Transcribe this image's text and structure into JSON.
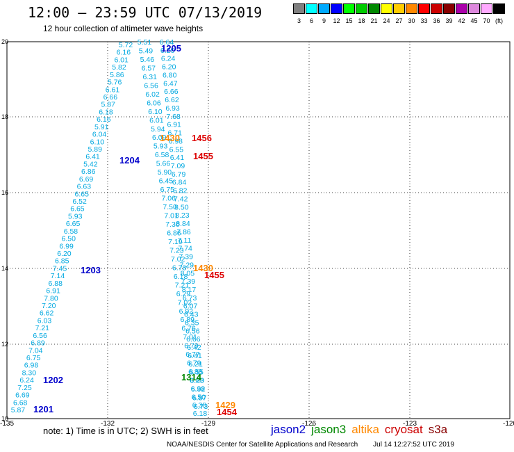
{
  "title": "12:00 – 23:59 UTC 07/13/2019",
  "subtitle": "12 hour collection of altimeter wave heights",
  "color_scale": {
    "labels": [
      "3",
      "6",
      "9",
      "12",
      "15",
      "18",
      "21",
      "24",
      "27",
      "30",
      "33",
      "36",
      "39",
      "42",
      "45",
      "70",
      "(ft)"
    ],
    "colors": [
      "#808080",
      "#00ffff",
      "#00aaff",
      "#0000ff",
      "#00ff00",
      "#00cc00",
      "#008800",
      "#ffff00",
      "#ffcc00",
      "#ff8800",
      "#ff0000",
      "#cc0000",
      "#880000",
      "#aa00aa",
      "#dd88dd",
      "#ffaaff",
      "#000000"
    ]
  },
  "axes": {
    "x_ticks": [
      "-135",
      "-132",
      "-129",
      "-126",
      "-123",
      "-120"
    ],
    "y_ticks": [
      "20",
      "18",
      "16",
      "14",
      "12",
      "10"
    ]
  },
  "markers": [
    {
      "text": "1205",
      "color": "#0000cc"
    },
    {
      "text": "1204",
      "color": "#0000cc"
    },
    {
      "text": "1203",
      "color": "#0000cc"
    },
    {
      "text": "1202",
      "color": "#0000cc"
    },
    {
      "text": "1201",
      "color": "#0000cc"
    },
    {
      "text": "1456",
      "color": "#dd0000"
    },
    {
      "text": "1455",
      "color": "#dd0000"
    },
    {
      "text": "1455",
      "color": "#dd0000"
    },
    {
      "text": "1454",
      "color": "#dd0000"
    },
    {
      "text": "1430",
      "color": "#ff8800"
    },
    {
      "text": "1430",
      "color": "#ff8800"
    },
    {
      "text": "1429",
      "color": "#ff8800"
    },
    {
      "text": "1314",
      "color": "#008800"
    }
  ],
  "track1": [
    "5.87",
    "6.68",
    "6.69",
    "7.25",
    "6.24",
    "8.30",
    "6.98",
    "6.75",
    "7.04",
    "6.89",
    "6.56",
    "7.21",
    "6.03",
    "6.62",
    "7.20",
    "7.80",
    "6.91",
    "6.88",
    "7.14",
    "7.45",
    "6.85",
    "6.20",
    "6.99",
    "6.50",
    "6.58",
    "6.65",
    "5.93",
    "6.65",
    "6.52",
    "6.65",
    "6.63",
    "6.69",
    "6.86",
    "5.42",
    "6.41",
    "5.89",
    "6.10",
    "6.04",
    "5.91",
    "6.16",
    "6.18",
    "5.87",
    "6.66",
    "6.61",
    "5.76",
    "5.86",
    "5.82",
    "6.01",
    "6.16",
    "5.72"
  ],
  "track2": [
    "5.51",
    "5.49",
    "5.46",
    "6.57",
    "6.31",
    "6.56",
    "6.02",
    "6.06",
    "6.10",
    "6.01",
    "5.94",
    "6.09",
    "5.93",
    "6.58",
    "5.66",
    "5.90",
    "6.45",
    "6.75",
    "7.06",
    "7.50",
    "7.01",
    "7.30",
    "6.86",
    "7.19",
    "7.23",
    "7.02",
    "6.78",
    "6.18",
    "7.21",
    "6.29",
    "7.02",
    "6.92",
    "6.89",
    "6.76",
    "7.01",
    "6.79",
    "6.77",
    "6.79",
    "6.88",
    "6.83",
    "6.92",
    "6.87",
    "6.73"
  ],
  "track3": [
    "6.64",
    "6.20",
    "6.24",
    "6.20",
    "6.80",
    "6.47",
    "6.66",
    "6.62",
    "6.93",
    "7.68",
    "6.91",
    "6.71",
    "6.98",
    "6.55",
    "6.41",
    "7.09",
    "6.79",
    "6.84",
    "6.82",
    "7.42",
    "8.50",
    "8.23",
    "8.84",
    "7.86",
    "7.11",
    "7.74",
    "7.39",
    "7.29",
    "8.05",
    "7.39",
    "8.17",
    "6.73",
    "6.07",
    "6.43",
    "6.35",
    "6.56",
    "6.66",
    "6.42",
    "6.41",
    "6.21",
    "6.55",
    "6.20",
    "6.38",
    "6.50",
    "6.38",
    "6.18"
  ],
  "note": "note:  1) Time is in UTC;  2) SWH is in feet",
  "legend": [
    {
      "text": "jason2",
      "color": "#0000cc"
    },
    {
      "text": "jason3",
      "color": "#008800"
    },
    {
      "text": "altika",
      "color": "#ff8800"
    },
    {
      "text": "cryosat",
      "color": "#cc0000"
    },
    {
      "text": "s3a",
      "color": "#880000"
    }
  ],
  "footer": {
    "credit": "NOAA/NESDIS Center for Satellite Applications and Research",
    "timestamp": "Jul 14 12:27:52 UTC 2019"
  }
}
